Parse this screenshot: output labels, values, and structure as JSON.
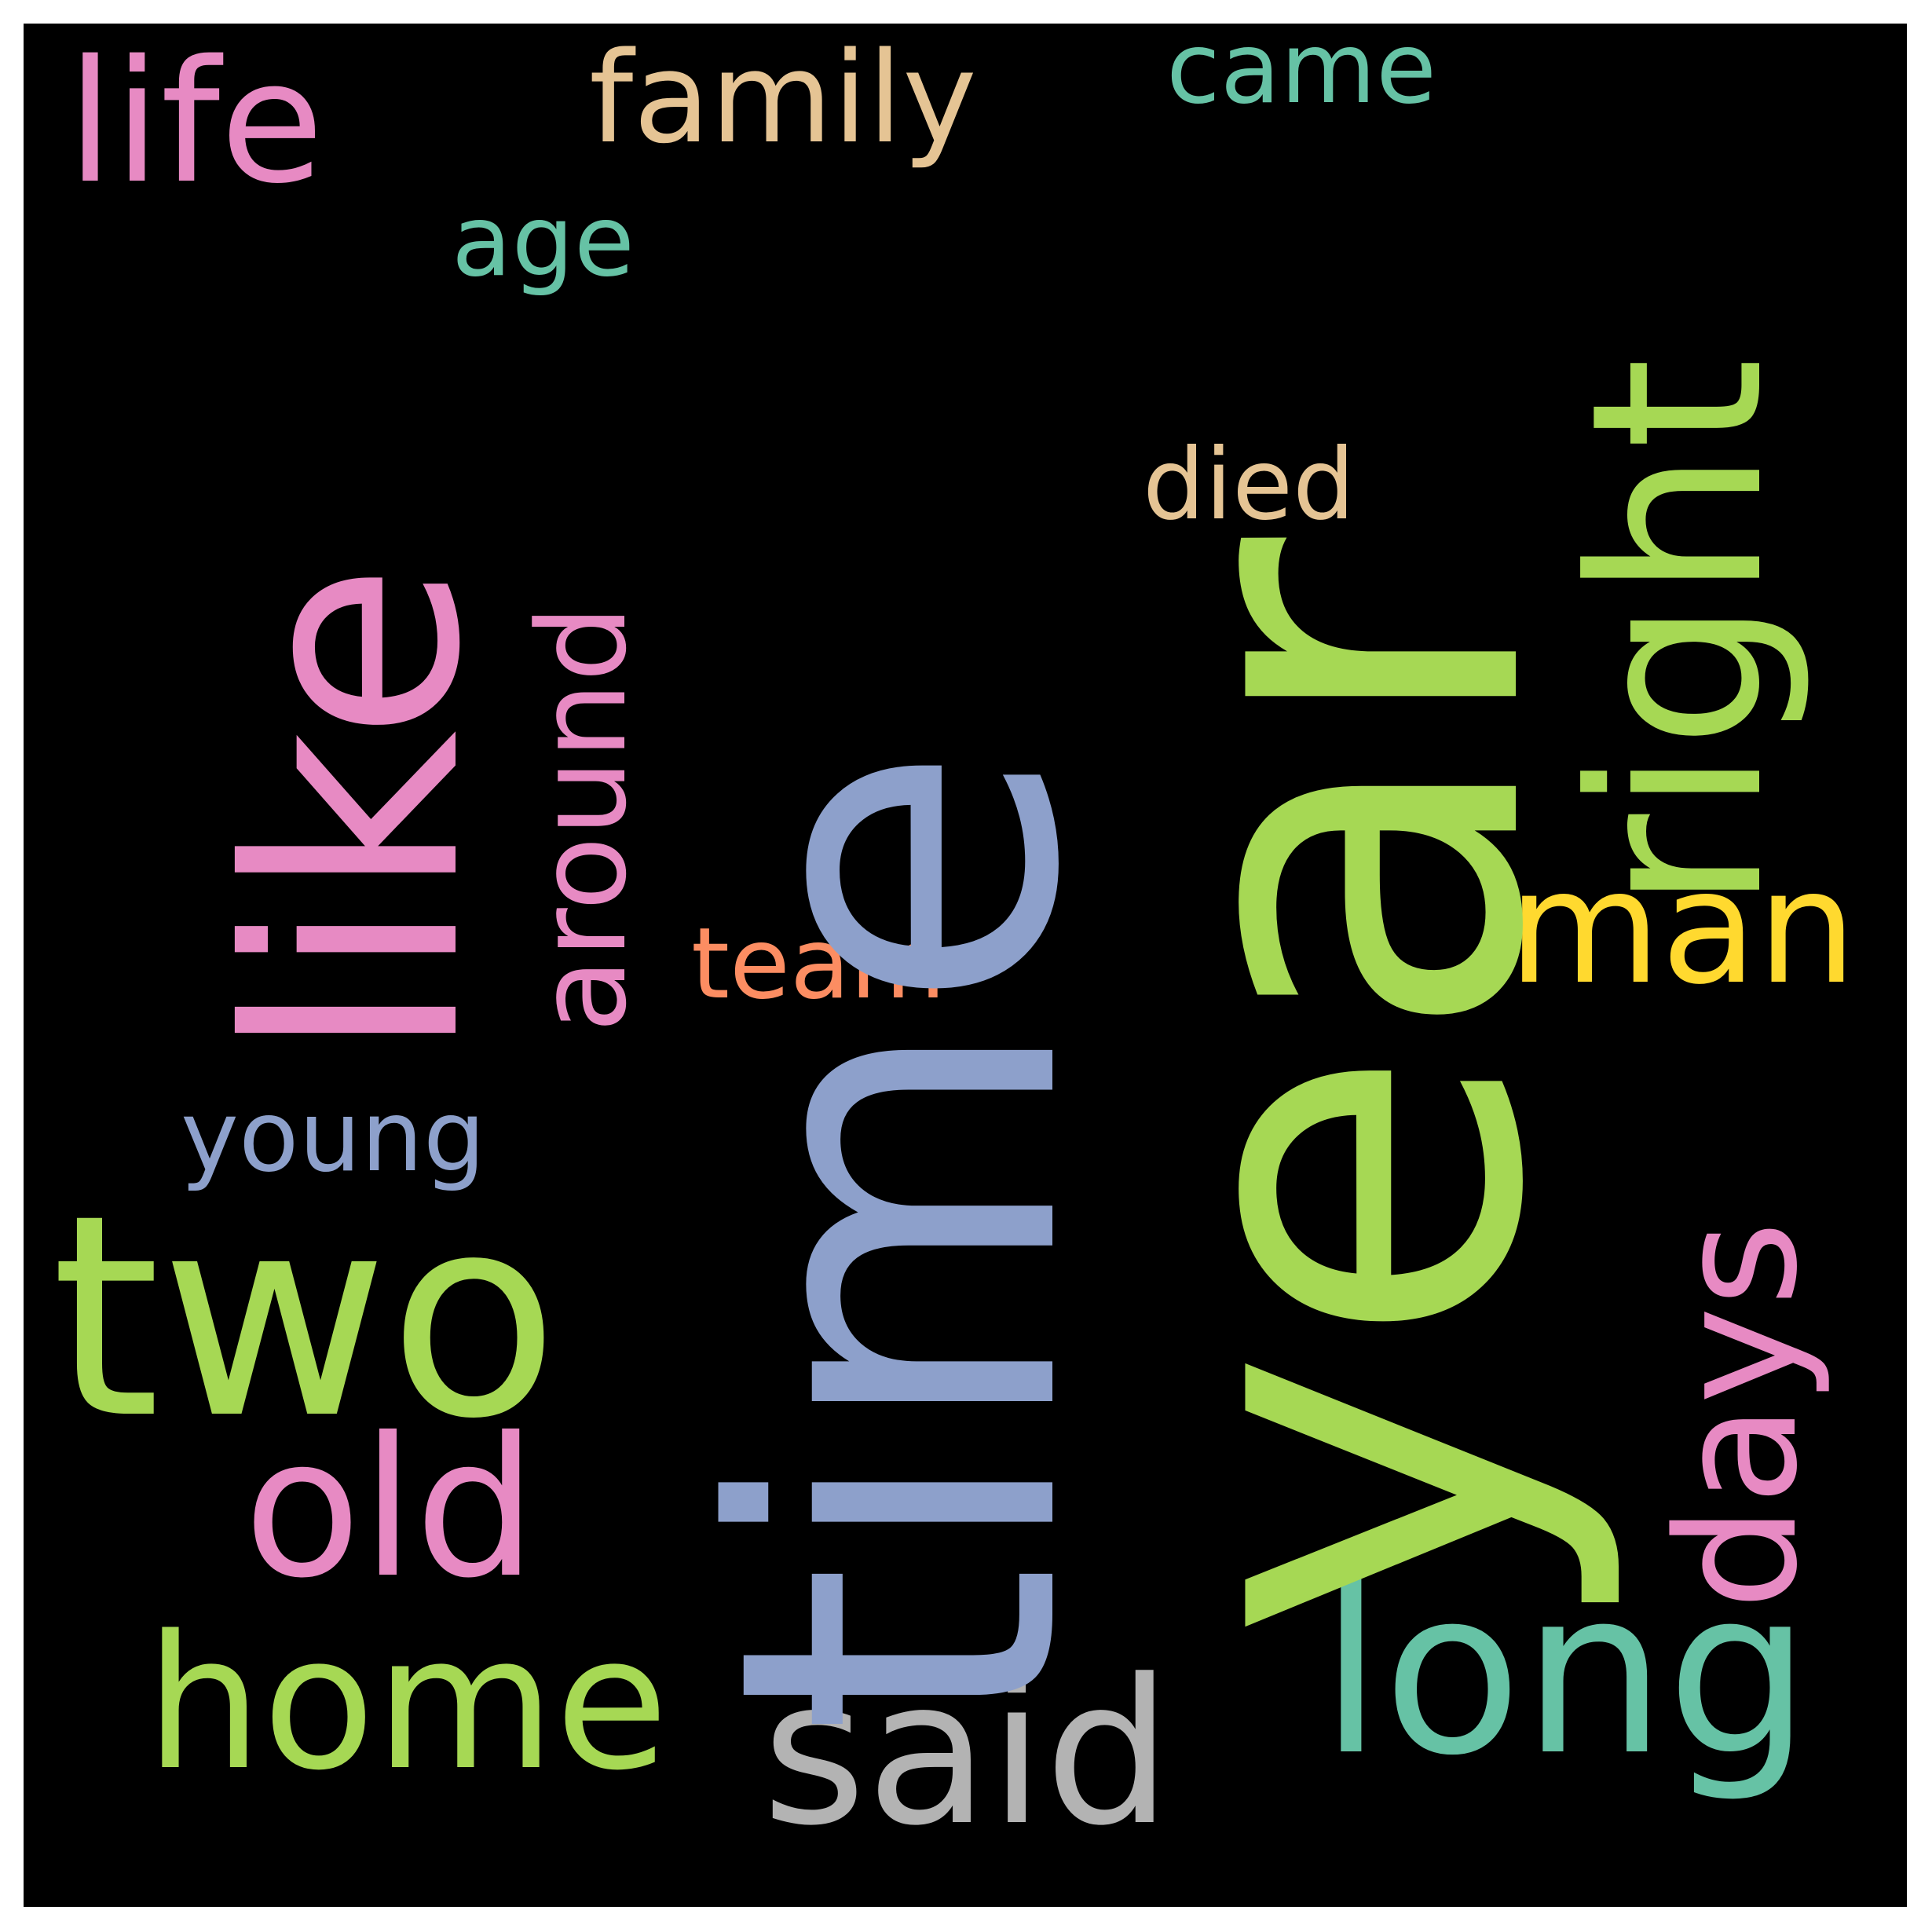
{
  "wordcloud": {
    "background": "#000000",
    "words": [
      {
        "text": "year",
        "color": "#a6d854"
      },
      {
        "text": "time",
        "color": "#8da0cb"
      },
      {
        "text": "like",
        "color": "#e78ac3"
      },
      {
        "text": "two",
        "color": "#a6d854"
      },
      {
        "text": "right",
        "color": "#a6d854"
      },
      {
        "text": "life",
        "color": "#e78ac3"
      },
      {
        "text": "family",
        "color": "#e5c494"
      },
      {
        "text": "came",
        "color": "#66c2a5"
      },
      {
        "text": "age",
        "color": "#66c2a5"
      },
      {
        "text": "around",
        "color": "#e78ac3"
      },
      {
        "text": "died",
        "color": "#e5c494"
      },
      {
        "text": "man",
        "color": "#ffd92f"
      },
      {
        "text": "team",
        "color": "#fc8d62"
      },
      {
        "text": "young",
        "color": "#8da0cb"
      },
      {
        "text": "days",
        "color": "#e78ac3"
      },
      {
        "text": "old",
        "color": "#e78ac3"
      },
      {
        "text": "home",
        "color": "#a6d854"
      },
      {
        "text": "said",
        "color": "#b3b3b3"
      },
      {
        "text": "long",
        "color": "#66c2a5"
      }
    ]
  }
}
